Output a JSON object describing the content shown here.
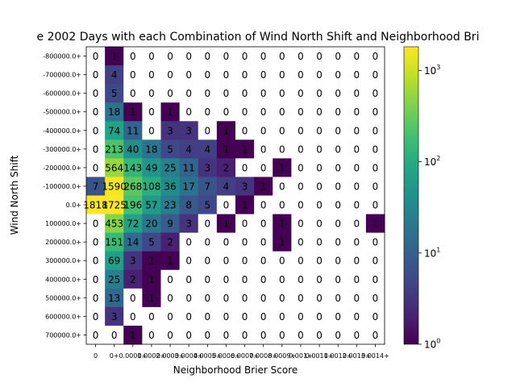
{
  "chart_data": {
    "type": "heatmap",
    "title": "e 2002 Days with each Combination of Wind North Shift and Neighborhood Bri",
    "xlabel": "Neighborhood Brier Score",
    "ylabel": "Wind North Shift",
    "x_categories": [
      "0",
      "0+",
      "0.0001+",
      "0.0002+",
      "0.0003+",
      "0.0004+",
      "0.0005+",
      "0.0006+",
      "0.0007+",
      "0.0008+",
      "0.0009+",
      "0.001+",
      "0.0011+",
      "0.0012+",
      "0.0013+",
      "0.0014+"
    ],
    "x_tick_labels": [
      "0",
      "0+",
      "0.0001+",
      "0.0002+",
      "0.0003+",
      "0.0004+",
      "0.0005+",
      "0.0006+",
      "0.0007+",
      "0.0008+",
      "0.0009+",
      "0.001+",
      "0.0011+",
      "0.0012+",
      "0.0013+",
      "0.0014+"
    ],
    "y_categories": [
      "-800000.0+",
      "-700000.0+",
      "-600000.0+",
      "-500000.0+",
      "-400000.0+",
      "-300000.0+",
      "-200000.0+",
      "-100000.0+",
      "0.0+",
      "100000.0+",
      "200000.0+",
      "300000.0+",
      "400000.0+",
      "500000.0+",
      "600000.0+",
      "700000.0+"
    ],
    "values": [
      [
        0,
        1,
        0,
        0,
        0,
        0,
        0,
        0,
        0,
        0,
        0,
        0,
        0,
        0,
        0,
        0
      ],
      [
        0,
        4,
        0,
        0,
        0,
        0,
        0,
        0,
        0,
        0,
        0,
        0,
        0,
        0,
        0,
        0
      ],
      [
        0,
        5,
        0,
        0,
        0,
        0,
        0,
        0,
        0,
        0,
        0,
        0,
        0,
        0,
        0,
        0
      ],
      [
        0,
        18,
        1,
        0,
        1,
        0,
        0,
        0,
        0,
        0,
        0,
        0,
        0,
        0,
        0,
        0
      ],
      [
        0,
        74,
        11,
        0,
        3,
        3,
        0,
        1,
        0,
        0,
        0,
        0,
        0,
        0,
        0,
        0
      ],
      [
        0,
        213,
        40,
        18,
        5,
        4,
        4,
        1,
        1,
        0,
        0,
        0,
        0,
        0,
        0,
        0
      ],
      [
        0,
        564,
        143,
        49,
        25,
        11,
        3,
        2,
        0,
        0,
        1,
        0,
        0,
        0,
        0,
        0
      ],
      [
        7,
        1590,
        268,
        108,
        36,
        17,
        7,
        4,
        3,
        1,
        0,
        0,
        0,
        0,
        0,
        0
      ],
      [
        1818,
        1725,
        196,
        57,
        23,
        8,
        5,
        0,
        1,
        0,
        0,
        0,
        0,
        0,
        0,
        0
      ],
      [
        0,
        453,
        72,
        20,
        9,
        3,
        0,
        1,
        0,
        0,
        1,
        0,
        0,
        0,
        0,
        1
      ],
      [
        0,
        151,
        14,
        5,
        2,
        0,
        0,
        0,
        0,
        0,
        1,
        0,
        0,
        0,
        0,
        0
      ],
      [
        0,
        69,
        3,
        1,
        1,
        0,
        0,
        0,
        0,
        0,
        0,
        0,
        0,
        0,
        0,
        0
      ],
      [
        0,
        25,
        2,
        1,
        0,
        0,
        0,
        0,
        0,
        0,
        0,
        0,
        0,
        0,
        0,
        0
      ],
      [
        0,
        13,
        0,
        1,
        0,
        0,
        0,
        0,
        0,
        0,
        0,
        0,
        0,
        0,
        0,
        0
      ],
      [
        0,
        3,
        0,
        0,
        0,
        0,
        0,
        0,
        0,
        0,
        0,
        0,
        0,
        0,
        0,
        0
      ],
      [
        0,
        0,
        1,
        0,
        0,
        0,
        0,
        0,
        0,
        0,
        0,
        0,
        0,
        0,
        0,
        0
      ]
    ],
    "colorbar": {
      "scale": "log",
      "range": [
        1,
        1818
      ],
      "colormap": "viridis",
      "ticks": [
        {
          "value": 1,
          "base": "10",
          "exp": "0"
        },
        {
          "value": 10,
          "base": "10",
          "exp": "1"
        },
        {
          "value": 100,
          "base": "10",
          "exp": "2"
        },
        {
          "value": 1000,
          "base": "10",
          "exp": "3"
        }
      ]
    },
    "zero_color": "#ffffff",
    "grid": false
  }
}
